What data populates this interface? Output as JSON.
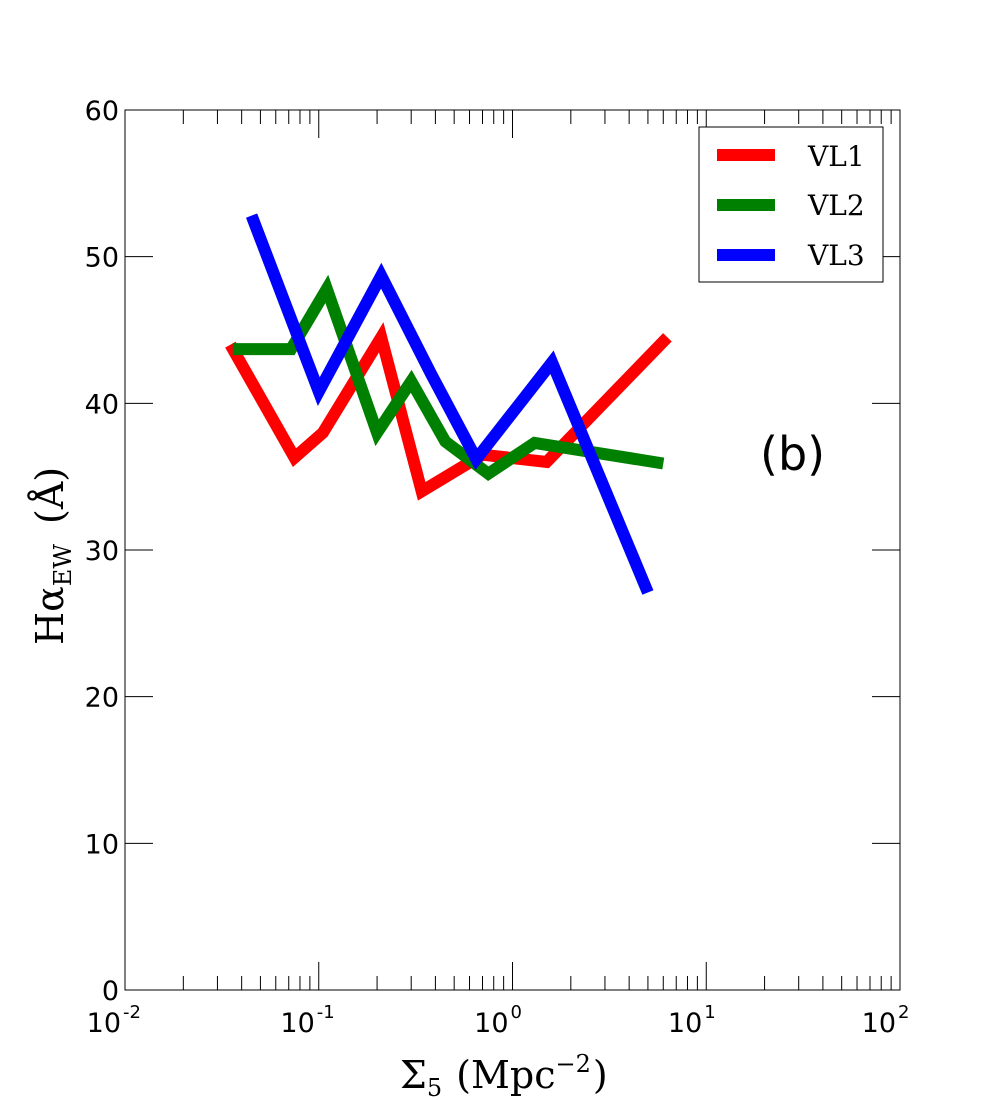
{
  "chart_data": {
    "type": "line",
    "xscale": "log",
    "xlim": [
      0.01,
      100
    ],
    "ylim": [
      0,
      60
    ],
    "x_ticks": [
      0.01,
      0.1,
      1,
      10,
      100
    ],
    "x_tick_labels": [
      {
        "base": "10",
        "exp": "-2"
      },
      {
        "base": "10",
        "exp": "-1"
      },
      {
        "base": "10",
        "exp": "0"
      },
      {
        "base": "10",
        "exp": "1"
      },
      {
        "base": "10",
        "exp": "2"
      }
    ],
    "y_ticks": [
      0,
      10,
      20,
      30,
      40,
      50,
      60
    ],
    "y_tick_labels": [
      "0",
      "10",
      "20",
      "30",
      "40",
      "50",
      "60"
    ],
    "xlabel": {
      "sigma": "Σ",
      "sub": "5",
      "unit": "(Mpc",
      "exp": "−2",
      "close": ")"
    },
    "ylabel": {
      "main": "Hα",
      "sub": "EW",
      "unit": "(Å)"
    },
    "annotation": "(b)",
    "legend_position": "top-right",
    "grid": false,
    "series": [
      {
        "name": "VL1",
        "color": "#ff0000",
        "x": [
          0.035,
          0.075,
          0.105,
          0.21,
          0.34,
          0.7,
          1.5,
          6.3
        ],
        "y": [
          44.0,
          36.3,
          38.0,
          44.5,
          34.0,
          36.5,
          36.0,
          44.5
        ]
      },
      {
        "name": "VL2",
        "color": "#008000",
        "x": [
          0.036,
          0.072,
          0.11,
          0.2,
          0.3,
          0.45,
          0.75,
          1.3,
          6.0
        ],
        "y": [
          43.7,
          43.7,
          47.8,
          38.0,
          41.5,
          37.4,
          35.2,
          37.3,
          35.9
        ]
      },
      {
        "name": "VL3",
        "color": "#0000ff",
        "x": [
          0.045,
          0.1,
          0.21,
          0.38,
          0.65,
          1.6,
          5.0
        ],
        "y": [
          52.8,
          40.8,
          48.7,
          42.0,
          36.2,
          42.8,
          27.1
        ]
      }
    ]
  }
}
